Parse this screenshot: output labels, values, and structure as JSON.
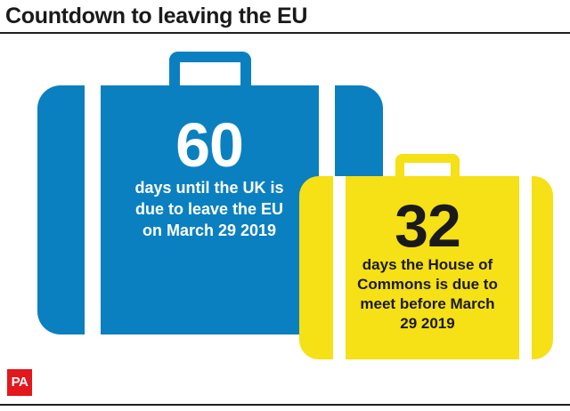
{
  "header": {
    "title": "Countdown to leaving the EU"
  },
  "cards": [
    {
      "number": "60",
      "lines": [
        "days until the UK is",
        "due to leave the EU",
        "on March 29 2019"
      ],
      "color": "#0b80c0",
      "text_color": "#ffffff"
    },
    {
      "number": "32",
      "lines": [
        "days the House of",
        "Commons is due to",
        "meet before March",
        "29 2019"
      ],
      "color": "#f6e016",
      "text_color": "#1a1a1a"
    }
  ],
  "footer": {
    "logo_text": "PA",
    "logo_color": "#e3171c"
  }
}
